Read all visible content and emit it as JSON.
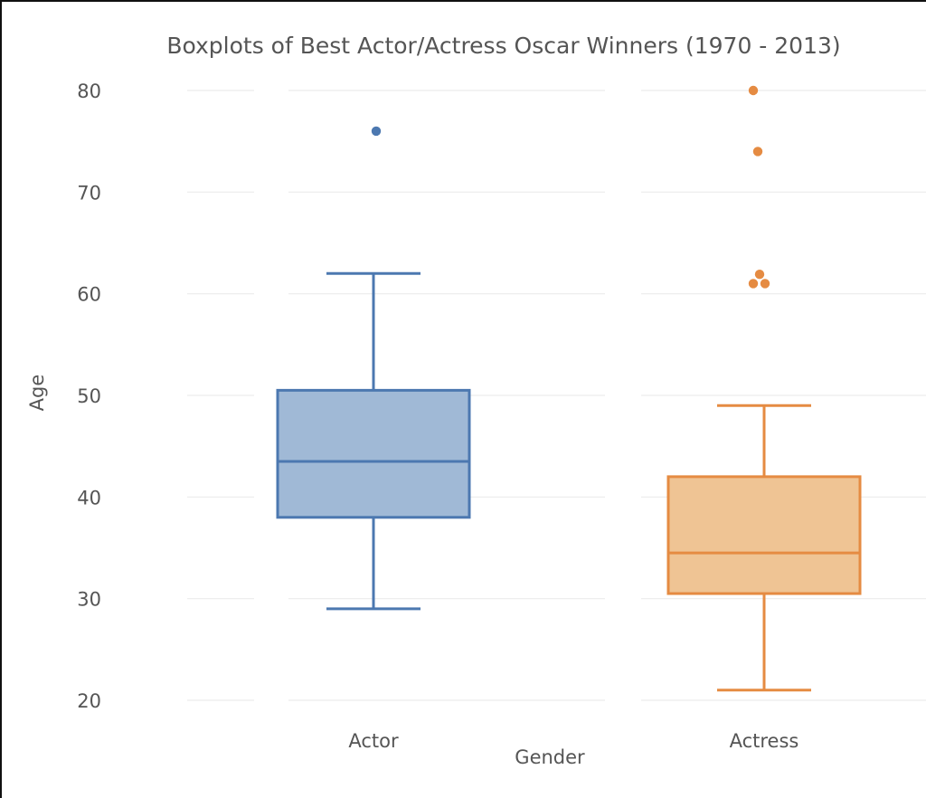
{
  "chart_data": {
    "type": "box",
    "title": "Boxplots of Best Actor/Actress Oscar Winners (1970 - 2013)",
    "xlabel": "Gender",
    "ylabel": "Age",
    "ylim": [
      20,
      80
    ],
    "yticks": [
      20,
      30,
      40,
      50,
      60,
      70,
      80
    ],
    "grid": true,
    "series": [
      {
        "name": "Actor",
        "color": "#4c78b0",
        "fill": "#a0b9d6",
        "whisker_low": 29,
        "q1": 38,
        "median": 43.5,
        "q3": 50.5,
        "whisker_high": 62,
        "outliers": [
          76
        ]
      },
      {
        "name": "Actress",
        "color": "#e58b42",
        "fill": "#efc494",
        "whisker_low": 21,
        "q1": 30.5,
        "median": 34.5,
        "q3": 42,
        "whisker_high": 49,
        "outliers": [
          80,
          74,
          62,
          61,
          61
        ]
      }
    ]
  }
}
